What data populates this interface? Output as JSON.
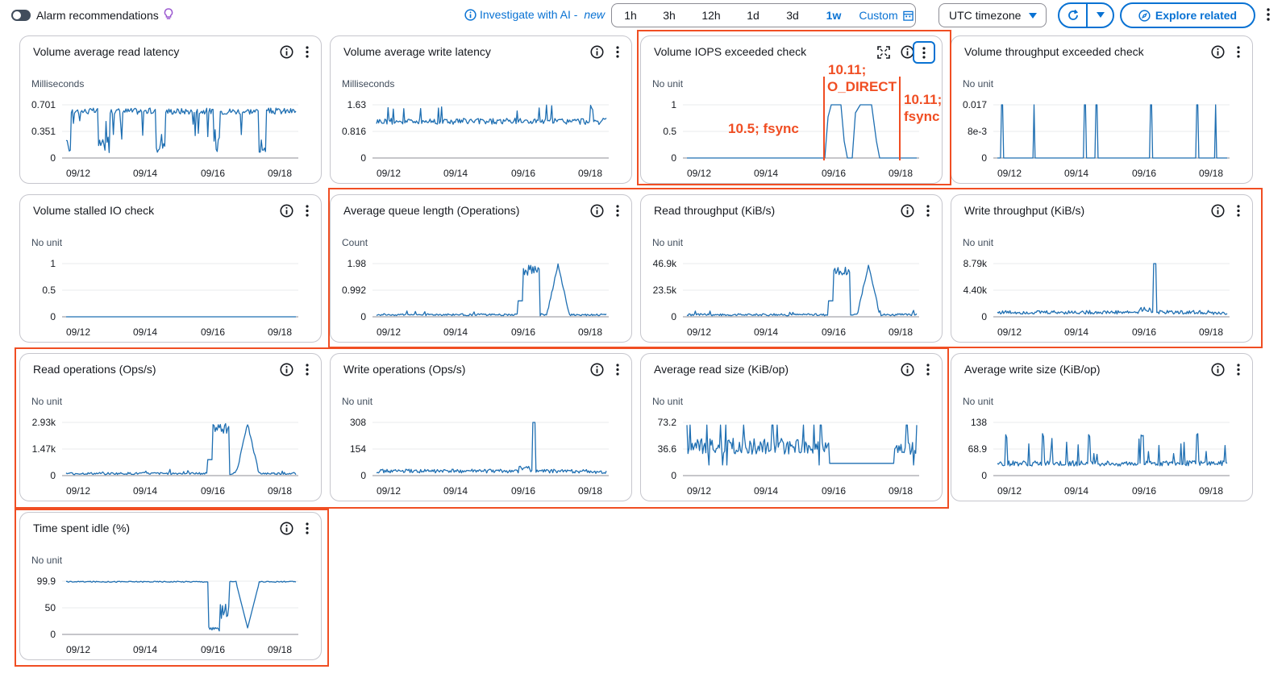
{
  "toolbar": {
    "alarm_label": "Alarm recommendations",
    "ai_link": "Investigate with AI -",
    "ai_new": "new",
    "ranges": [
      "1h",
      "3h",
      "12h",
      "1d",
      "3d",
      "1w"
    ],
    "active_range": "1w",
    "custom_label": "Custom",
    "timezone": "UTC timezone",
    "explore_label": "Explore related"
  },
  "colors": {
    "line": "#1f6fb2",
    "annotation": "#f04e23",
    "accent": "#0972d3"
  },
  "xticks": [
    "09/12",
    "09/14",
    "09/16",
    "09/18"
  ],
  "cards": [
    {
      "title": "Volume average read latency",
      "unit": "Milliseconds",
      "y_ticks": [
        "0.701",
        "0.351",
        "0"
      ],
      "y_max": 0.701,
      "pattern": "read_latency"
    },
    {
      "title": "Volume average write latency",
      "unit": "Milliseconds",
      "y_ticks": [
        "1.63",
        "0.816",
        "0"
      ],
      "y_max": 1.63,
      "pattern": "write_latency"
    },
    {
      "title": "Volume IOPS exceeded check",
      "unit": "No unit",
      "y_ticks": [
        "1",
        "0.5",
        "0"
      ],
      "y_max": 1,
      "pattern": "iops"
    },
    {
      "title": "Volume throughput exceeded check",
      "unit": "No unit",
      "y_ticks": [
        "0.017",
        "8e-3",
        "0"
      ],
      "y_max": 0.017,
      "pattern": "throughput_check"
    },
    {
      "title": "Volume stalled IO check",
      "unit": "No unit",
      "y_ticks": [
        "1",
        "0.5",
        "0"
      ],
      "y_max": 1,
      "pattern": "flat"
    },
    {
      "title": "Average queue length (Operations)",
      "unit": "Count",
      "y_ticks": [
        "1.98",
        "0.992",
        "0"
      ],
      "y_max": 1.98,
      "pattern": "humps"
    },
    {
      "title": "Read throughput (KiB/s)",
      "unit": "No unit",
      "y_ticks": [
        "46.9k",
        "23.5k",
        "0"
      ],
      "y_max": 46900,
      "pattern": "humps"
    },
    {
      "title": "Write throughput (KiB/s)",
      "unit": "No unit",
      "y_ticks": [
        "8.79k",
        "4.40k",
        "0"
      ],
      "y_max": 8790,
      "pattern": "spike"
    },
    {
      "title": "Read operations (Ops/s)",
      "unit": "No unit",
      "y_ticks": [
        "2.93k",
        "1.47k",
        "0"
      ],
      "y_max": 2930,
      "pattern": "humps"
    },
    {
      "title": "Write operations (Ops/s)",
      "unit": "No unit",
      "y_ticks": [
        "308",
        "154",
        "0"
      ],
      "y_max": 308,
      "pattern": "spike"
    },
    {
      "title": "Average read size (KiB/op)",
      "unit": "No unit",
      "y_ticks": [
        "73.2",
        "36.6",
        "0"
      ],
      "y_max": 73.2,
      "pattern": "read_size"
    },
    {
      "title": "Average write size (KiB/op)",
      "unit": "No unit",
      "y_ticks": [
        "138",
        "68.9",
        "0"
      ],
      "y_max": 138,
      "pattern": "write_size"
    },
    {
      "title": "Time spent idle (%)",
      "unit": "No unit",
      "y_ticks": [
        "99.9",
        "50",
        "0"
      ],
      "y_max": 99.9,
      "pattern": "idle"
    }
  ],
  "annotations": {
    "fsync_105": "10.5; fsync",
    "odirect_line1": "10.11;",
    "odirect_line2": "O_DIRECT",
    "fsync_1011_line1": "10.11;",
    "fsync_1011_line2": "fsync"
  }
}
